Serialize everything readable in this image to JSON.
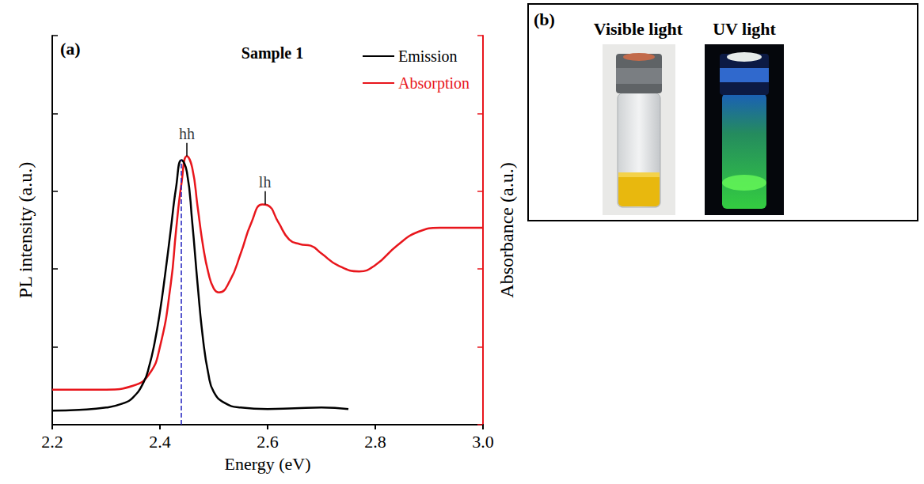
{
  "chart_data": {
    "type": "line",
    "panel": "(a)",
    "title": "Sample 1",
    "x_label": "Energy (eV)",
    "y_label": "PL intensity (a.u.)",
    "y2_label": "Absorbance (a.u.)",
    "xlim": [
      2.2,
      3.0
    ],
    "xticks": [
      2.2,
      2.4,
      2.6,
      2.8,
      {
        "value": 3.0,
        "label": "3.0"
      }
    ],
    "ylim": [
      0,
      5
    ],
    "yticks": [
      0,
      1,
      2,
      3,
      4,
      5
    ],
    "y2lim": [
      0,
      5
    ],
    "y2ticks": [
      0,
      1,
      2,
      3,
      4,
      5
    ],
    "tick_labels": "x",
    "legend": "upper right",
    "series": [
      {
        "name": "Emission",
        "color": "#000000",
        "x": [
          2.2,
          2.25,
          2.3,
          2.33,
          2.35,
          2.37,
          2.38,
          2.39,
          2.4,
          2.41,
          2.42,
          2.43,
          2.44,
          2.45,
          2.46,
          2.47,
          2.48,
          2.49,
          2.5,
          2.52,
          2.55,
          2.6,
          2.65,
          2.7,
          2.75
        ],
        "values": [
          0.18,
          0.19,
          0.22,
          0.27,
          0.35,
          0.55,
          0.75,
          1.05,
          1.45,
          1.95,
          2.5,
          3.05,
          3.4,
          3.25,
          2.6,
          1.8,
          1.1,
          0.65,
          0.42,
          0.28,
          0.22,
          0.2,
          0.21,
          0.22,
          0.2
        ]
      },
      {
        "name": "Absorption",
        "color": "#e8161c",
        "axis": "y2",
        "x": [
          2.2,
          2.3,
          2.35,
          2.38,
          2.4,
          2.42,
          2.43,
          2.44,
          2.45,
          2.46,
          2.47,
          2.48,
          2.49,
          2.5,
          2.51,
          2.53,
          2.55,
          2.57,
          2.59,
          2.6,
          2.62,
          2.64,
          2.66,
          2.68,
          2.7,
          2.73,
          2.77,
          2.8,
          2.84,
          2.88,
          2.92,
          2.96,
          3.0
        ],
        "values": [
          0.45,
          0.45,
          0.5,
          0.65,
          1.0,
          1.8,
          2.5,
          3.1,
          3.45,
          3.3,
          2.8,
          2.3,
          1.95,
          1.75,
          1.7,
          1.85,
          2.2,
          2.6,
          2.83,
          2.82,
          2.6,
          2.38,
          2.32,
          2.3,
          2.2,
          2.05,
          1.97,
          2.05,
          2.3,
          2.48,
          2.53,
          2.53,
          2.53
        ]
      }
    ],
    "annotations": [
      {
        "text": "hh",
        "x": 2.45,
        "y": 3.62
      },
      {
        "text": "lh",
        "x": 2.595,
        "y": 3.0
      }
    ],
    "reference_line": {
      "x": 2.44,
      "y": [
        0,
        3.4
      ],
      "color": "#1f1fbf",
      "line_style": "dashed"
    }
  },
  "panel_b": {
    "letter": "(b)",
    "labels": [
      "Visible light",
      "UV light"
    ]
  }
}
